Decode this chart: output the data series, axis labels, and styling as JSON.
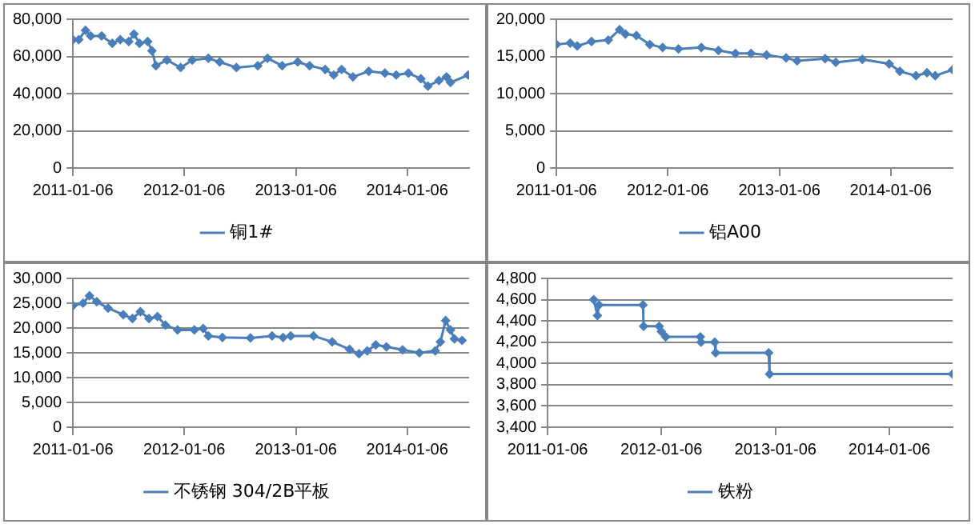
{
  "chart_data": [
    {
      "type": "line",
      "x": [
        "2011-01-06",
        "2011-01-25",
        "2011-02-16",
        "2011-03-05",
        "2011-04-10",
        "2011-05-15",
        "2011-06-10",
        "2011-07-08",
        "2011-07-25",
        "2011-08-12",
        "2011-09-08",
        "2011-09-22",
        "2011-10-05",
        "2011-11-10",
        "2011-12-25",
        "2012-02-01",
        "2012-03-25",
        "2012-05-01",
        "2012-06-25",
        "2012-09-03",
        "2012-10-05",
        "2012-11-22",
        "2013-01-12",
        "2013-02-20",
        "2013-04-12",
        "2013-05-10",
        "2013-06-05",
        "2013-07-12",
        "2013-09-02",
        "2013-10-25",
        "2013-12-01",
        "2014-01-10",
        "2014-02-20",
        "2014-03-15",
        "2014-04-20",
        "2014-05-15",
        "2014-05-28",
        "2014-07-25"
      ],
      "series": [
        {
          "name": "铜1#",
          "color": "#4a7ebb",
          "values": [
            69000,
            69000,
            74000,
            71000,
            71000,
            67000,
            69000,
            68000,
            72000,
            67000,
            68000,
            63000,
            55000,
            58000,
            54000,
            58000,
            59000,
            57000,
            54000,
            55000,
            59000,
            55000,
            57000,
            55000,
            53000,
            50000,
            53000,
            49000,
            52000,
            51000,
            50000,
            51000,
            48000,
            44000,
            47000,
            49000,
            46000,
            50000
          ]
        }
      ],
      "xlim": [
        "2011-01-06",
        "2014-07-28"
      ],
      "xticks": [
        "2011-01-06",
        "2012-01-06",
        "2013-01-06",
        "2014-01-06"
      ],
      "ylim": [
        0,
        80000
      ],
      "yticks": [
        {
          "value": 0,
          "label": "0"
        },
        {
          "value": 20000,
          "label": "20,000"
        },
        {
          "value": 40000,
          "label": "40,000"
        },
        {
          "value": 60000,
          "label": "60,000"
        },
        {
          "value": 80000,
          "label": "80,000"
        }
      ],
      "grid": "y",
      "legend": "bottom",
      "marker": "diamond"
    },
    {
      "type": "line",
      "x": [
        "2011-01-06",
        "2011-02-20",
        "2011-03-15",
        "2011-05-01",
        "2011-06-25",
        "2011-08-01",
        "2011-08-20",
        "2011-09-25",
        "2011-11-08",
        "2011-12-20",
        "2012-02-10",
        "2012-04-25",
        "2012-06-20",
        "2012-08-15",
        "2012-10-05",
        "2012-11-25",
        "2013-01-28",
        "2013-03-05",
        "2013-06-05",
        "2013-07-10",
        "2013-10-05",
        "2014-01-01",
        "2014-02-05",
        "2014-03-30",
        "2014-05-05",
        "2014-06-01",
        "2014-07-28"
      ],
      "series": [
        {
          "name": "铝A00",
          "color": "#4a7ebb",
          "values": [
            16600,
            16800,
            16400,
            17000,
            17200,
            18600,
            18000,
            17800,
            16600,
            16200,
            16000,
            16200,
            15800,
            15400,
            15400,
            15200,
            14800,
            14400,
            14700,
            14200,
            14600,
            14000,
            13000,
            12400,
            12800,
            12400,
            13200
          ]
        }
      ],
      "xlim": [
        "2011-01-06",
        "2014-07-28"
      ],
      "xticks": [
        "2011-01-06",
        "2012-01-06",
        "2013-01-06",
        "2014-01-06"
      ],
      "ylim": [
        0,
        20000
      ],
      "yticks": [
        {
          "value": 0,
          "label": "0"
        },
        {
          "value": 5000,
          "label": "5,000"
        },
        {
          "value": 10000,
          "label": "10,000"
        },
        {
          "value": 15000,
          "label": "15,000"
        },
        {
          "value": 20000,
          "label": "20,000"
        }
      ],
      "grid": "y",
      "legend": "bottom",
      "marker": "diamond"
    },
    {
      "type": "line",
      "x": [
        "2011-01-06",
        "2011-02-08",
        "2011-03-01",
        "2011-03-25",
        "2011-05-01",
        "2011-06-20",
        "2011-07-20",
        "2011-08-15",
        "2011-09-12",
        "2011-10-10",
        "2011-11-05",
        "2011-12-15",
        "2012-02-08",
        "2012-03-08",
        "2012-03-25",
        "2012-05-10",
        "2012-08-10",
        "2012-10-20",
        "2012-11-25",
        "2012-12-20",
        "2013-03-05",
        "2013-05-05",
        "2013-07-01",
        "2013-08-01",
        "2013-08-28",
        "2013-09-25",
        "2013-10-30",
        "2013-12-22",
        "2014-02-15",
        "2014-04-08",
        "2014-04-25",
        "2014-05-12",
        "2014-05-28",
        "2014-06-10",
        "2014-07-05"
      ],
      "series": [
        {
          "name": "不锈钢 304/2B平板",
          "color": "#4a7ebb",
          "values": [
            24500,
            25000,
            26500,
            25300,
            24000,
            22700,
            21900,
            23300,
            21900,
            22300,
            20600,
            19600,
            19600,
            19900,
            18400,
            18100,
            18000,
            18400,
            18100,
            18400,
            18400,
            17200,
            15700,
            14800,
            15400,
            16600,
            16200,
            15600,
            15000,
            15400,
            17200,
            21500,
            19600,
            17800,
            17500
          ]
        }
      ],
      "xlim": [
        "2011-01-06",
        "2014-07-28"
      ],
      "xticks": [
        "2011-01-06",
        "2012-01-06",
        "2013-01-06",
        "2014-01-06"
      ],
      "ylim": [
        0,
        30000
      ],
      "yticks": [
        {
          "value": 0,
          "label": "0"
        },
        {
          "value": 5000,
          "label": "5,000"
        },
        {
          "value": 10000,
          "label": "10,000"
        },
        {
          "value": 15000,
          "label": "15,000"
        },
        {
          "value": 20000,
          "label": "20,000"
        },
        {
          "value": 25000,
          "label": "25,000"
        },
        {
          "value": 30000,
          "label": "30,000"
        }
      ],
      "grid": "y",
      "legend": "bottom",
      "marker": "diamond"
    },
    {
      "type": "line",
      "x": [
        "2011-06-03",
        "2011-06-15",
        "2011-06-20",
        "2011-11-08",
        "2011-11-10",
        "2011-12-30",
        "2012-01-06",
        "2012-01-20",
        "2012-05-10",
        "2012-05-12",
        "2012-06-25",
        "2012-06-28",
        "2012-12-15",
        "2012-12-18",
        "2014-07-28"
      ],
      "series": [
        {
          "name": "铁粉",
          "color": "#4a7ebb",
          "values": [
            4600,
            4450,
            4550,
            4550,
            4350,
            4350,
            4300,
            4250,
            4250,
            4200,
            4200,
            4100,
            4100,
            3900,
            3900
          ]
        }
      ],
      "xlim": [
        "2011-01-06",
        "2014-07-28"
      ],
      "xticks": [
        "2011-01-06",
        "2012-01-06",
        "2013-01-06",
        "2014-01-06"
      ],
      "ylim": [
        3400,
        4800
      ],
      "yticks": [
        {
          "value": 3400,
          "label": "3,400"
        },
        {
          "value": 3600,
          "label": "3,600"
        },
        {
          "value": 3800,
          "label": "3,800"
        },
        {
          "value": 4000,
          "label": "4,000"
        },
        {
          "value": 4200,
          "label": "4,200"
        },
        {
          "value": 4400,
          "label": "4,400"
        },
        {
          "value": 4600,
          "label": "4,600"
        },
        {
          "value": 4800,
          "label": "4,800"
        }
      ],
      "grid": "y",
      "legend": "bottom",
      "marker": "diamond"
    }
  ]
}
